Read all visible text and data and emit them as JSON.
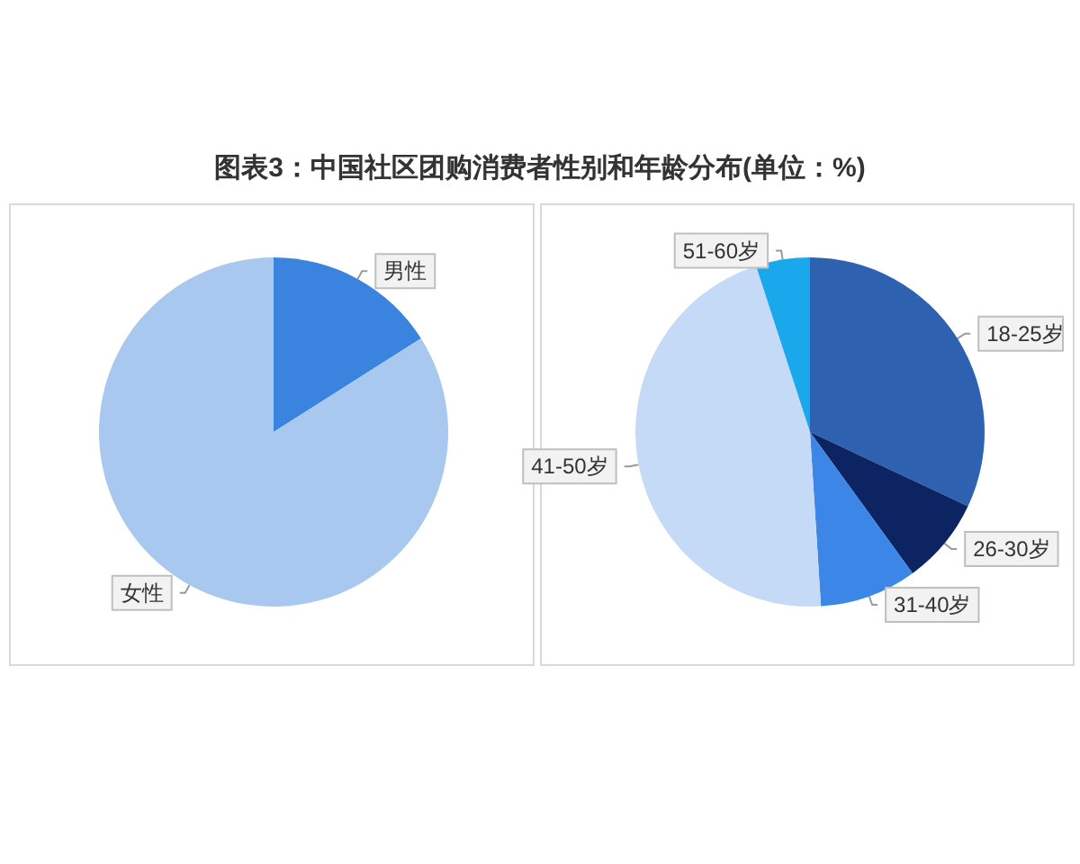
{
  "chart_data": [
    {
      "type": "pie",
      "title": "图表3：中国社区团购消费者性别和年龄分布(单位：%)",
      "categories": [
        "男性",
        "女性"
      ],
      "values": [
        16,
        84
      ],
      "colors": [
        "#3a84e0",
        "#a9c8f0"
      ]
    },
    {
      "type": "pie",
      "categories": [
        "18-25岁",
        "26-30岁",
        "31-40岁",
        "41-50岁",
        "51-60岁"
      ],
      "values": [
        32,
        8,
        9,
        46,
        5
      ],
      "colors": [
        "#2e62b0",
        "#0d2463",
        "#3b86e6",
        "#c5daf6",
        "#1aa8ec"
      ]
    }
  ]
}
